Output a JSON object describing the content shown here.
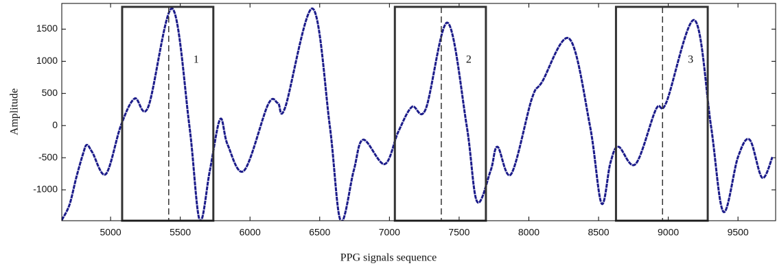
{
  "chart_data": {
    "type": "line",
    "x_label": "PPG signals sequence",
    "y_label": "Amplitude",
    "xlim": [
      4650,
      9770
    ],
    "ylim": [
      -1480,
      1900
    ],
    "xticks": [
      5000,
      5500,
      6000,
      6500,
      7000,
      7500,
      8000,
      8500,
      9000,
      9500
    ],
    "yticks": [
      -1000,
      -500,
      0,
      500,
      1000,
      1500
    ],
    "x": [
      4650,
      4705,
      4754,
      4803,
      4830,
      4870,
      4966,
      5074,
      5172,
      5270,
      5442,
      5565,
      5639,
      5712,
      5786,
      5840,
      5958,
      6130,
      6200,
      6252,
      6449,
      6572,
      6650,
      6744,
      6812,
      6965,
      7063,
      7161,
      7260,
      7417,
      7554,
      7628,
      7726,
      7775,
      7873,
      8021,
      8095,
      8291,
      8438,
      8521,
      8585,
      8643,
      8765,
      8912,
      8986,
      9188,
      9306,
      9395,
      9500,
      9584,
      9673,
      9747
    ],
    "series": [
      {
        "name": "PPG",
        "color": "#1c1c8a",
        "values": [
          -1470,
          -1234,
          -809,
          -436,
          -300,
          -420,
          -755,
          0,
          420,
          290,
          1820,
          0,
          -1470,
          -700,
          100,
          -300,
          -700,
          330,
          350,
          280,
          1820,
          0,
          -1480,
          -700,
          -220,
          -600,
          -100,
          290,
          255,
          1600,
          0,
          -1180,
          -700,
          -330,
          -755,
          415,
          680,
          1350,
          0,
          -1210,
          -580,
          -330,
          -600,
          255,
          360,
          1640,
          0,
          -1340,
          -490,
          -220,
          -810,
          -490
        ]
      }
    ],
    "regions": [
      {
        "label": "1",
        "x": [
          5083,
          5737
        ],
        "marker": 5417
      },
      {
        "label": "2",
        "x": [
          7039,
          7692
        ],
        "marker": 7372
      },
      {
        "label": "3",
        "x": [
          8625,
          9283
        ],
        "marker": 8959
      }
    ]
  }
}
